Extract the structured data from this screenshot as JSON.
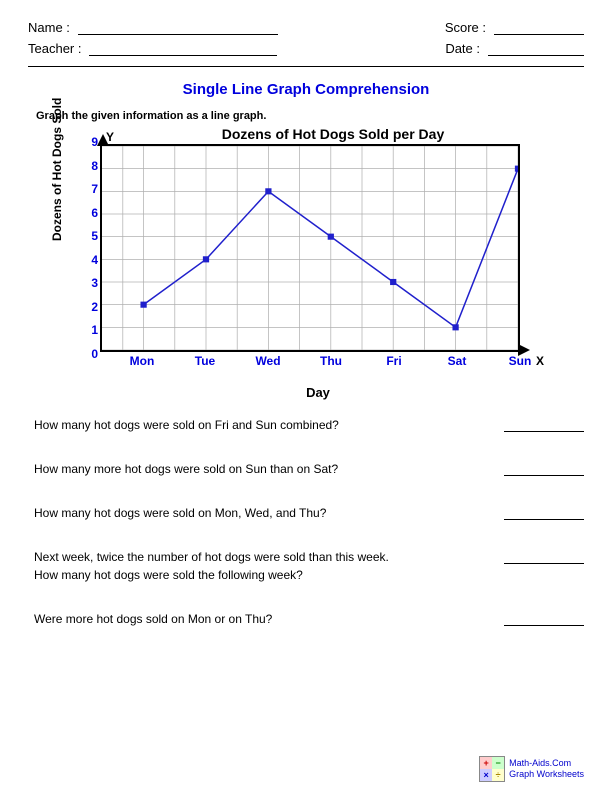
{
  "header": {
    "name_label": "Name :",
    "teacher_label": "Teacher :",
    "score_label": "Score :",
    "date_label": "Date :"
  },
  "title": "Single Line Graph Comprehension",
  "instruction": "Graph the given information as a line graph.",
  "chart": {
    "type": "line",
    "title": "Dozens of Hot Dogs Sold per Day",
    "y_axis_label": "Dozens of Hot Dogs Sold",
    "x_axis_label": "Day",
    "axis_y_mark": "Y",
    "axis_x_mark": "X",
    "categories": [
      "Mon",
      "Tue",
      "Wed",
      "Thu",
      "Fri",
      "Sat",
      "Sun"
    ],
    "values": [
      2,
      4,
      7,
      5,
      3,
      1,
      8
    ],
    "y_ticks": [
      0,
      1,
      2,
      3,
      4,
      5,
      6,
      7,
      8,
      9
    ],
    "ylim": [
      0,
      9
    ],
    "line_color": "#2020cc",
    "marker_color": "#2020cc",
    "marker_size": 6,
    "line_width": 1.5,
    "grid_color": "#b0b0b0",
    "tick_color": "#0000dd",
    "background_color": "#ffffff",
    "border_color": "#000000",
    "x_positions_pct": [
      10,
      25,
      40,
      55,
      70,
      85,
      100
    ],
    "minor_x_mid": true
  },
  "questions": [
    {
      "text": "How many hot dogs were sold on Fri and Sun combined?"
    },
    {
      "text": "How many more hot dogs were sold on Sun than on Sat?"
    },
    {
      "text": "How many hot dogs were sold on Mon, Wed, and Thu?"
    },
    {
      "text": "Next week, twice the number of hot dogs were sold than this week.\nHow many hot dogs were sold the following week?"
    },
    {
      "text": "Were more hot dogs sold on Mon or on Thu?"
    }
  ],
  "footer": {
    "line1": "Math-Aids.Com",
    "line2": "Graph Worksheets"
  }
}
